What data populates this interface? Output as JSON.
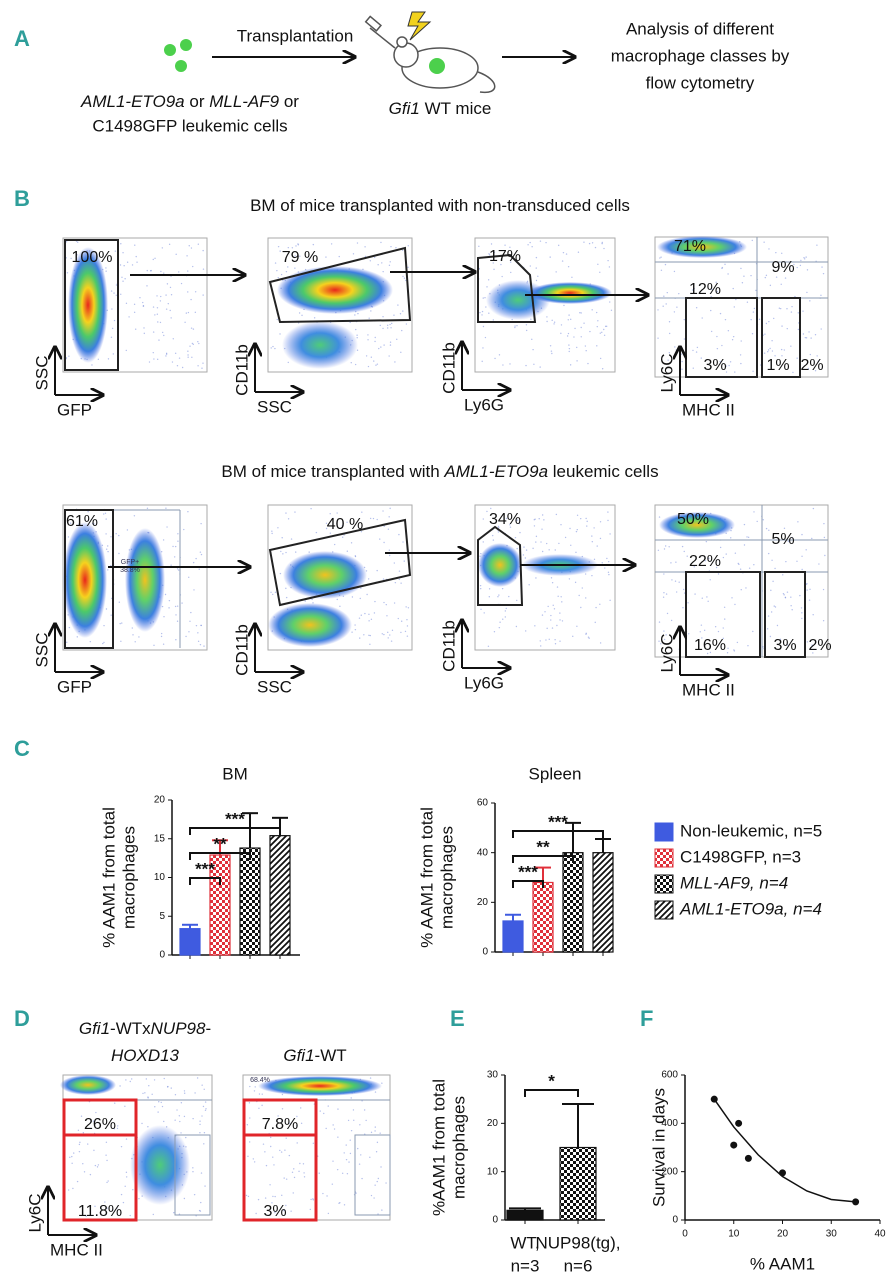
{
  "panel_a": {
    "label": "A",
    "arrow_label": "Transplantation",
    "cells_line1": [
      "AML1-ETO9a",
      " or ",
      "MLL-AF9",
      " or"
    ],
    "cells_line2": "C1498GFP leukemic cells",
    "mice": [
      "Gfi1",
      " WT mice"
    ],
    "analysis": [
      "Analysis of different",
      "macrophage classes by",
      "flow cytometry"
    ]
  },
  "panel_b": {
    "label": "B",
    "rows": [
      {
        "title": [
          "BM of mice transplanted with non-transduced cells"
        ],
        "gates": [
          [
            "100%"
          ],
          [
            "79 %"
          ],
          [
            "17%"
          ],
          [
            "71%",
            "9%",
            "12%",
            "3%",
            "1%",
            "2%"
          ]
        ],
        "axes": [
          [
            "SSC",
            "GFP"
          ],
          [
            "CD11b",
            "SSC"
          ],
          [
            "CD11b",
            "Ly6G"
          ],
          [
            "Ly6C",
            "MHC II"
          ]
        ]
      },
      {
        "title": [
          "BM of mice transplanted with ",
          "AML1-ETO9a",
          " leukemic cells"
        ],
        "gates": [
          [
            "61%",
            "GFP+",
            "38.8%"
          ],
          [
            "40 %"
          ],
          [
            "34%"
          ],
          [
            "50%",
            "5%",
            "22%",
            "16%",
            "3%",
            "2%"
          ]
        ],
        "axes": [
          [
            "SSC",
            "GFP"
          ],
          [
            "CD11b",
            "SSC"
          ],
          [
            "CD11b",
            "Ly6G"
          ],
          [
            "Ly6C",
            "MHC II"
          ]
        ]
      }
    ]
  },
  "panel_d": {
    "label": "D",
    "plots": [
      {
        "title": [
          [
            "Gfi1",
            "-WTx",
            "NUP98",
            "-"
          ],
          [
            "HOXD13"
          ]
        ],
        "gates": [
          "26%",
          "11.8%"
        ]
      },
      {
        "title": [
          [
            "Gfi1",
            "-WT"
          ]
        ],
        "gates": [
          "68.4%",
          "7.8%",
          "3%"
        ]
      }
    ],
    "axes": [
      "Ly6C",
      "MHC II"
    ]
  },
  "chart_data": [
    {
      "type": "bar",
      "panel_label": "C",
      "title": "BM",
      "y_label": [
        "% AAM1 from total",
        "macrophages"
      ],
      "categories": [
        null,
        null,
        null,
        null
      ],
      "values": [
        3.4,
        12.9,
        13.8,
        15.4
      ],
      "errors": [
        0.5,
        1.9,
        4.5,
        2.3
      ],
      "colors": [
        "#3f5be0",
        "#e0303a",
        "#111111",
        "#111111"
      ],
      "patterns": [
        "solid",
        "checker",
        "checker",
        "stripes"
      ],
      "legend": [
        "Non-leukemic, n=5",
        "C1498GFP,  n=3",
        "MLL-AF9,  n=4",
        "AML1-ETO9a, n=4"
      ],
      "ylim": [
        0,
        20
      ],
      "yticks": [
        0,
        5,
        10,
        15,
        20
      ],
      "significance": [
        "***",
        "**",
        "***"
      ]
    },
    {
      "type": "bar",
      "title": "Spleen",
      "y_label": [
        "% AAM1 from total",
        "macrophages"
      ],
      "categories": [
        null,
        null,
        null,
        null
      ],
      "values": [
        12.5,
        28,
        40,
        40
      ],
      "errors": [
        2.5,
        6,
        12,
        5.5
      ],
      "colors": [
        "#3f5be0",
        "#e0303a",
        "#111111",
        "#111111"
      ],
      "patterns": [
        "solid",
        "checker",
        "checker",
        "stripes"
      ],
      "ylim": [
        0,
        60
      ],
      "yticks": [
        0,
        20,
        40,
        60
      ],
      "significance": [
        "***",
        "**",
        "***"
      ]
    },
    {
      "type": "bar",
      "panel_label": "E",
      "y_label": [
        "%AAM1 from total",
        "macrophages"
      ],
      "categories": [
        "WT,",
        "NUP98(tg),"
      ],
      "category_n": [
        "n=3",
        "n=6"
      ],
      "values": [
        2,
        15
      ],
      "errors": [
        0.4,
        9
      ],
      "colors": [
        "#111111",
        "#111111"
      ],
      "patterns": [
        "solid",
        "checker"
      ],
      "ylim": [
        0,
        30
      ],
      "yticks": [
        0,
        10,
        20,
        30
      ],
      "significance": [
        "*"
      ]
    },
    {
      "type": "scatter",
      "panel_label": "F",
      "x_label": "% AAM1",
      "y_label": "Survival in days",
      "x": [
        6,
        10,
        11,
        13,
        20,
        35
      ],
      "values": [
        500,
        310,
        400,
        255,
        195,
        75
      ],
      "color": "#111111",
      "fit": {
        "x": [
          6,
          10,
          15,
          20,
          25,
          30,
          35
        ],
        "values": [
          500,
          385,
          270,
          180,
          120,
          85,
          75
        ]
      },
      "xlim": [
        0,
        40
      ],
      "xticks": [
        0,
        10,
        20,
        30,
        40
      ],
      "ylim": [
        0,
        600
      ],
      "yticks": [
        0,
        200,
        400,
        600
      ]
    }
  ]
}
